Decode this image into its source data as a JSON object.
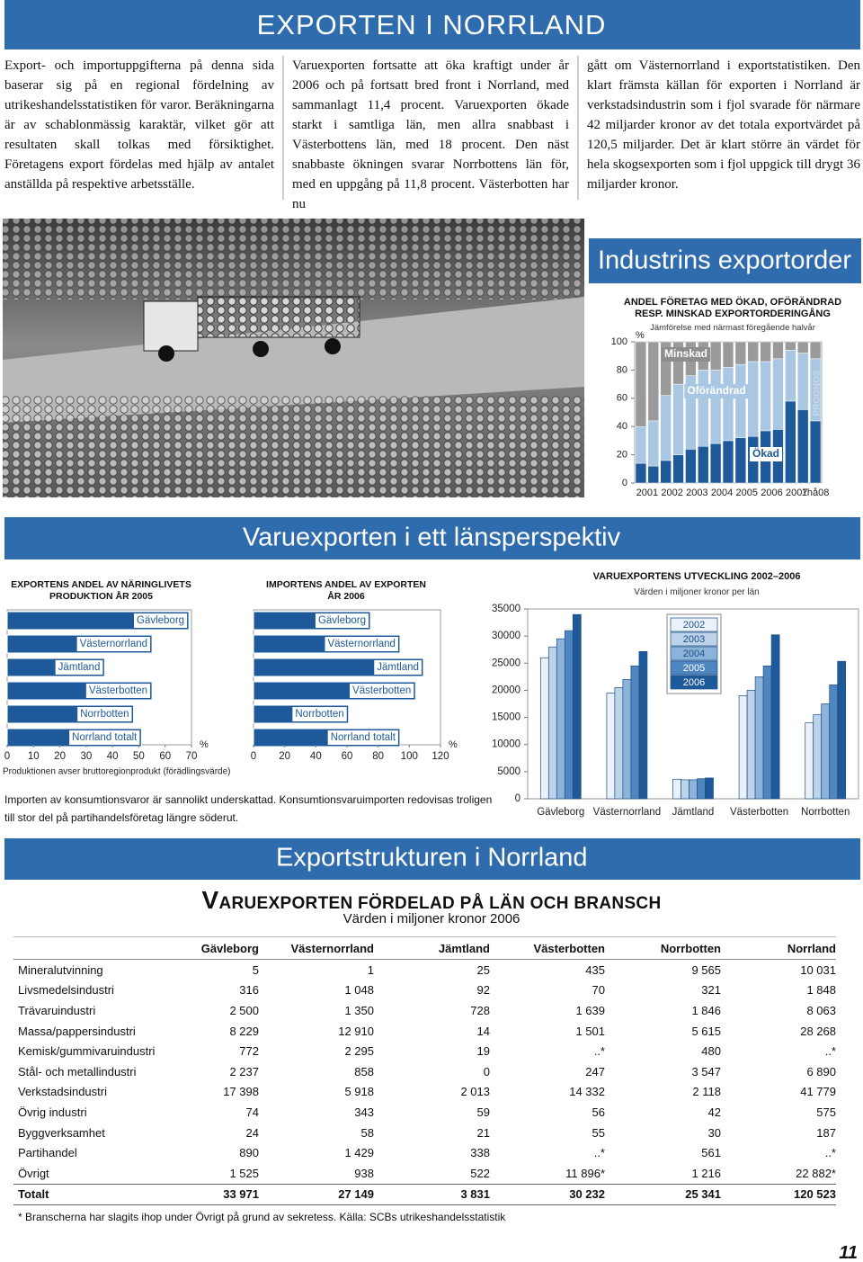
{
  "header": {
    "title": "EXPORTEN I NORRLAND"
  },
  "intro": {
    "columns": [
      "Export- och importuppgifterna på denna sida baserar sig på en regional fördelning av utrikeshandelsstatistiken för varor. Beräkningarna är av schablonmässig karaktär, vilket gör att resultaten skall tolkas med försiktighet. Företagens export fördelas med hjälp av antalet anställda på respektive arbetsställe.",
      "Varuexporten fortsatte att öka kraftigt under år 2006 och på fortsatt bred front i Norrland, med sammanlagt 11,4 procent. Varuexporten ökade starkt i samtliga län, men allra snabbast i Västerbottens län, med 18 procent. Den näst snabbaste ökningen svarar Norrbottens län för, med en uppgång på 11,8 procent. Västerbotten har nu",
      "gått om Västernorrland i exportstatistiken. Den klart främsta källan för exporten i Norrland är verkstadsindustrin som i fjol svarade för närmare 42 miljarder kronor av det totala exportvärdet på 120,5 miljarder. Det är klart större än värdet för hela skogsexporten som i fjol uppgick till drygt 36 miljarder kronor."
    ]
  },
  "chart_data": [
    {
      "type": "stacked_bar",
      "title": "Industrins exportorder",
      "subtitle": "ANDEL FÖRETAG MED ÖKAD, OFÖRÄNDRAD RESP. MINSKAD EXPORTORDERINGÅNG",
      "note": "Jämförelse med närmast föregående halvår",
      "y_unit": "%",
      "annotation": "PROGNOS",
      "categories": [
        "2001",
        null,
        "2002",
        null,
        "2003",
        null,
        "2004",
        null,
        "2005",
        null,
        "2006",
        null,
        "2007",
        null,
        "1hå08"
      ],
      "series": [
        {
          "name": "Ökad",
          "color": "#1e5a99",
          "values": [
            14,
            12,
            16,
            20,
            24,
            26,
            28,
            30,
            32,
            33,
            37,
            38,
            58,
            52,
            44
          ]
        },
        {
          "name": "Oförändrad",
          "color": "#a9c6e3",
          "values": [
            26,
            32,
            46,
            50,
            52,
            54,
            52,
            52,
            52,
            53,
            49,
            50,
            36,
            40,
            44
          ]
        },
        {
          "name": "Minskad",
          "color": "#9a9a9a",
          "values": [
            60,
            56,
            38,
            30,
            24,
            20,
            20,
            18,
            16,
            14,
            14,
            12,
            6,
            8,
            12
          ]
        }
      ],
      "ylim": [
        0,
        100
      ],
      "yticks": [
        0,
        20,
        40,
        60,
        80,
        100
      ]
    },
    {
      "type": "hbar",
      "title": "EXPORTENS ANDEL AV NÄRINGLIVETS PRODUKTION ÅR 2005",
      "note": "Produktionen avser bruttoregionprodukt (förädlingsvärde)",
      "x_unit": "%",
      "categories": [
        "Gävleborg",
        "Västernorrland",
        "Jämtland",
        "Västerbotten",
        "Norrbotten",
        "Norrland totalt"
      ],
      "values": [
        69,
        55,
        37,
        55,
        48,
        51
      ],
      "color": "#1e5a99",
      "xlim": [
        0,
        70
      ],
      "xticks": [
        0,
        10,
        20,
        30,
        40,
        50,
        60,
        70
      ]
    },
    {
      "type": "hbar",
      "title": "IMPORTENS ANDEL AV EXPORTEN ÅR 2006",
      "x_unit": "%",
      "categories": [
        "Gävleborg",
        "Västernorrland",
        "Jämtland",
        "Västerbotten",
        "Norrbotten",
        "Norrland totalt"
      ],
      "values": [
        75,
        94,
        109,
        104,
        61,
        94
      ],
      "color": "#1e5a99",
      "xlim": [
        0,
        120
      ],
      "xticks": [
        0,
        20,
        40,
        60,
        80,
        100,
        120
      ]
    },
    {
      "type": "grouped_bar",
      "title": "VARUEXPORTENS UTVECKLING 2002–2006",
      "subtitle": "Värden i miljoner kronor per län",
      "categories": [
        "Gävleborg",
        "Västernorrland",
        "Jämtland",
        "Västerbotten",
        "Norrbotten"
      ],
      "series": [
        {
          "name": "2002",
          "color": "#eaf1f9",
          "values": [
            26000,
            19500,
            3600,
            19000,
            14000
          ]
        },
        {
          "name": "2003",
          "color": "#bcd3ea",
          "values": [
            28000,
            20500,
            3500,
            20000,
            15500
          ]
        },
        {
          "name": "2004",
          "color": "#8cb3da",
          "values": [
            29500,
            22000,
            3500,
            22500,
            17500
          ]
        },
        {
          "name": "2005",
          "color": "#4f86c0",
          "values": [
            31000,
            24500,
            3700,
            24500,
            21000
          ]
        },
        {
          "name": "2006",
          "color": "#1e5a99",
          "values": [
            33971,
            27149,
            3831,
            30232,
            25341
          ]
        }
      ],
      "ylim": [
        0,
        35000
      ],
      "yticks": [
        0,
        5000,
        10000,
        15000,
        20000,
        25000,
        30000,
        35000
      ],
      "legend": "upper-center"
    }
  ],
  "section_banners": [
    "Varuexporten i ett länsperspektiv",
    "Exportstrukturen i Norrland"
  ],
  "import_note": "Importen av konsumtionsvaror är sannolikt underskattad. Konsumtionsvaruimporten redovisas troligen till stor del på partihandelsföretag längre söderut.",
  "table": {
    "title": "VARUEXPORTEN FÖRDELAD PÅ LÄN OCH BRANSCH",
    "subtitle": "Värden i miljoner kronor 2006",
    "columns": [
      "Gävleborg",
      "Västernorrland",
      "Jämtland",
      "Västerbotten",
      "Norrbotten",
      "Norrland"
    ],
    "rows": [
      [
        "Mineralutvinning",
        "5",
        "1",
        "25",
        "435",
        "9 565",
        "10 031"
      ],
      [
        "Livsmedelsindustri",
        "316",
        "1 048",
        "92",
        "70",
        "321",
        "1 848"
      ],
      [
        "Trävaruindustri",
        "2 500",
        "1 350",
        "728",
        "1 639",
        "1 846",
        "8 063"
      ],
      [
        "Massa/pappersindustri",
        "8 229",
        "12 910",
        "14",
        "1 501",
        "5 615",
        "28 268"
      ],
      [
        "Kemisk/gummivaruindustri",
        "772",
        "2 295",
        "19",
        "..*",
        "480",
        "..*"
      ],
      [
        "Stål- och metallindustri",
        "2 237",
        "858",
        "0",
        "247",
        "3 547",
        "6 890"
      ],
      [
        "Verkstadsindustri",
        "17 398",
        "5 918",
        "2 013",
        "14 332",
        "2 118",
        "41 779"
      ],
      [
        "Övrig industri",
        "74",
        "343",
        "59",
        "56",
        "42",
        "575"
      ],
      [
        "Byggverksamhet",
        "24",
        "58",
        "21",
        "55",
        "30",
        "187"
      ],
      [
        "Partihandel",
        "890",
        "1 429",
        "338",
        "..*",
        "561",
        "..*"
      ],
      [
        "Övrigt",
        "1 525",
        "938",
        "522",
        "11 896*",
        "1 216",
        "22 882*"
      ],
      [
        "Totalt",
        "33 971",
        "27 149",
        "3 831",
        "30 232",
        "25 341",
        "120 523"
      ]
    ],
    "footnote": "* Branscherna har slagits ihop under Övrigt på grund av sekretess. Källa: SCBs utrikeshandelsstatistik"
  },
  "page_number": "11"
}
